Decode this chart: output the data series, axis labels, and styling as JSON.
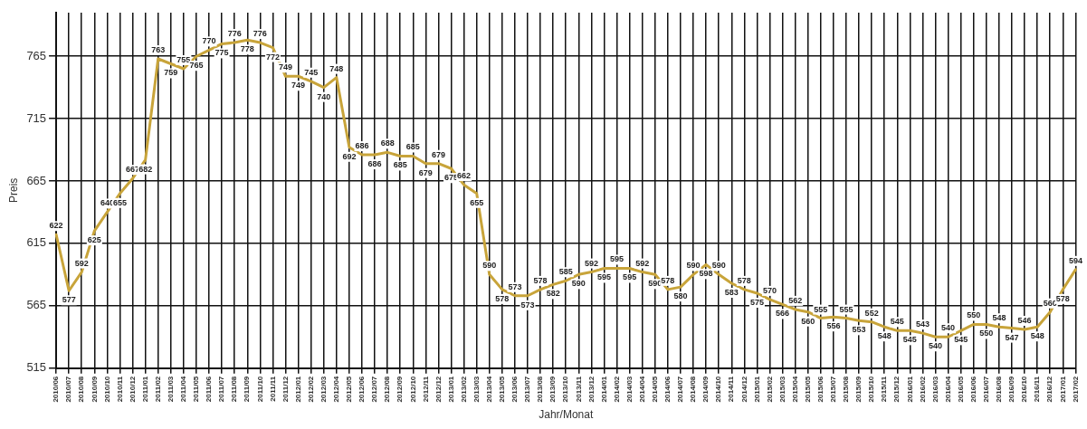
{
  "chart_data": {
    "type": "line",
    "xlabel": "Jahr/Monat",
    "ylabel": "Preis",
    "categories": [
      "2010/06",
      "2010/07",
      "2010/08",
      "2010/09",
      "2010/10",
      "2010/11",
      "2010/12",
      "2011/01",
      "2011/02",
      "2011/03",
      "2011/04",
      "2011/05",
      "2011/06",
      "2011/07",
      "2011/08",
      "2011/09",
      "2011/10",
      "2011/11",
      "2011/12",
      "2012/01",
      "2012/02",
      "2012/03",
      "2012/04",
      "2012/05",
      "2012/06",
      "2012/07",
      "2012/08",
      "2012/09",
      "2012/10",
      "2012/11",
      "2012/12",
      "2013/01",
      "2013/02",
      "2013/03",
      "2013/04",
      "2013/05",
      "2013/06",
      "2013/07",
      "2013/08",
      "2013/09",
      "2013/10",
      "2013/11",
      "2013/12",
      "2014/01",
      "2014/02",
      "2014/03",
      "2014/04",
      "2014/05",
      "2014/06",
      "2014/07",
      "2014/08",
      "2014/09",
      "2014/10",
      "2014/11",
      "2014/12",
      "2015/01",
      "2015/02",
      "2015/03",
      "2015/04",
      "2015/05",
      "2015/06",
      "2015/07",
      "2015/08",
      "2015/09",
      "2015/10",
      "2015/11",
      "2015/12",
      "2016/01",
      "2016/02",
      "2016/03",
      "2016/04",
      "2016/05",
      "2016/06",
      "2016/07",
      "2016/08",
      "2016/09",
      "2016/10",
      "2016/11",
      "2016/12",
      "2017/01",
      "2017/02"
    ],
    "series": [
      {
        "color": "#c8a43a",
        "values": [
          622,
          577,
          592,
          625,
          640,
          655,
          667,
          682,
          763,
          759,
          755,
          765,
          770,
          775,
          776,
          778,
          776,
          772,
          749,
          749,
          745,
          740,
          748,
          692,
          686,
          686,
          688,
          685,
          685,
          679,
          679,
          675,
          662,
          655,
          590,
          578,
          573,
          573,
          578,
          582,
          585,
          590,
          592,
          595,
          595,
          595,
          592,
          590,
          578,
          580,
          590,
          598,
          590,
          583,
          578,
          575,
          570,
          566,
          562,
          560,
          555,
          556,
          555,
          553,
          552,
          548,
          545,
          545,
          543,
          540,
          540,
          545,
          550,
          550,
          548,
          547,
          546,
          548,
          560,
          578,
          594
        ]
      }
    ],
    "ylim": [
      515,
      800
    ],
    "yticks": [
      515,
      565,
      615,
      665,
      715,
      765
    ],
    "grid": true,
    "legend": false,
    "marker": "none",
    "line_style": "solid",
    "data_labels": true
  }
}
